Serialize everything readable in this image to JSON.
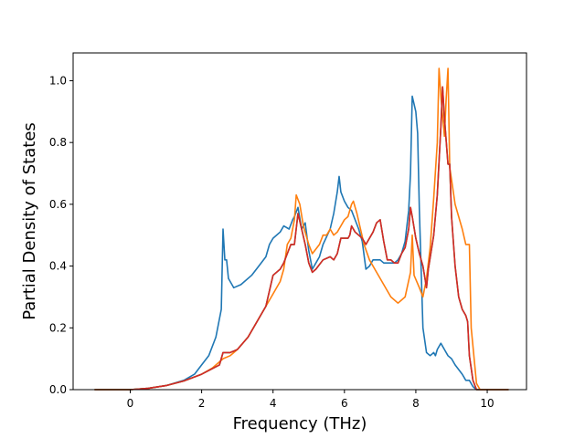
{
  "chart_data": {
    "type": "line",
    "title": "",
    "xlabel": "Frequency (THz)",
    "ylabel": "Partial Density of States",
    "xlim": [
      -1.6,
      11.1
    ],
    "ylim": [
      0.0,
      1.09
    ],
    "xticks": [
      0,
      2,
      4,
      6,
      8,
      10
    ],
    "yticks": [
      0.0,
      0.2,
      0.4,
      0.6,
      0.8,
      1.0
    ],
    "grid": false,
    "legend": "none",
    "series": [
      {
        "color": "#1f77b4",
        "points": [
          [
            -1.0,
            0.0
          ],
          [
            0.0,
            0.0
          ],
          [
            0.5,
            0.004
          ],
          [
            1.0,
            0.013
          ],
          [
            1.5,
            0.03
          ],
          [
            1.8,
            0.05
          ],
          [
            2.0,
            0.08
          ],
          [
            2.2,
            0.11
          ],
          [
            2.4,
            0.17
          ],
          [
            2.55,
            0.26
          ],
          [
            2.6,
            0.52
          ],
          [
            2.65,
            0.42
          ],
          [
            2.7,
            0.42
          ],
          [
            2.75,
            0.36
          ],
          [
            2.9,
            0.33
          ],
          [
            3.1,
            0.34
          ],
          [
            3.4,
            0.37
          ],
          [
            3.6,
            0.4
          ],
          [
            3.8,
            0.43
          ],
          [
            3.9,
            0.47
          ],
          [
            4.0,
            0.49
          ],
          [
            4.2,
            0.51
          ],
          [
            4.3,
            0.53
          ],
          [
            4.45,
            0.52
          ],
          [
            4.55,
            0.55
          ],
          [
            4.6,
            0.56
          ],
          [
            4.7,
            0.59
          ],
          [
            4.8,
            0.52
          ],
          [
            4.9,
            0.54
          ],
          [
            5.0,
            0.45
          ],
          [
            5.1,
            0.39
          ],
          [
            5.2,
            0.41
          ],
          [
            5.3,
            0.43
          ],
          [
            5.4,
            0.47
          ],
          [
            5.6,
            0.52
          ],
          [
            5.7,
            0.57
          ],
          [
            5.8,
            0.64
          ],
          [
            5.85,
            0.69
          ],
          [
            5.9,
            0.64
          ],
          [
            6.0,
            0.61
          ],
          [
            6.1,
            0.59
          ],
          [
            6.2,
            0.58
          ],
          [
            6.4,
            0.52
          ],
          [
            6.5,
            0.48
          ],
          [
            6.6,
            0.39
          ],
          [
            6.7,
            0.4
          ],
          [
            6.8,
            0.42
          ],
          [
            7.0,
            0.42
          ],
          [
            7.1,
            0.41
          ],
          [
            7.2,
            0.41
          ],
          [
            7.4,
            0.41
          ],
          [
            7.5,
            0.42
          ],
          [
            7.6,
            0.44
          ],
          [
            7.7,
            0.48
          ],
          [
            7.8,
            0.58
          ],
          [
            7.85,
            0.7
          ],
          [
            7.9,
            0.95
          ],
          [
            8.0,
            0.9
          ],
          [
            8.05,
            0.83
          ],
          [
            8.1,
            0.58
          ],
          [
            8.2,
            0.2
          ],
          [
            8.3,
            0.12
          ],
          [
            8.4,
            0.11
          ],
          [
            8.5,
            0.12
          ],
          [
            8.55,
            0.11
          ],
          [
            8.6,
            0.13
          ],
          [
            8.7,
            0.15
          ],
          [
            8.8,
            0.13
          ],
          [
            8.9,
            0.11
          ],
          [
            9.0,
            0.1
          ],
          [
            9.1,
            0.08
          ],
          [
            9.3,
            0.05
          ],
          [
            9.4,
            0.03
          ],
          [
            9.5,
            0.03
          ],
          [
            9.6,
            0.01
          ],
          [
            9.7,
            0.0
          ],
          [
            10.0,
            0.0
          ],
          [
            10.6,
            0.0
          ]
        ]
      },
      {
        "color": "#ff7f0e",
        "points": [
          [
            -1.0,
            0.0
          ],
          [
            0.0,
            0.0
          ],
          [
            0.5,
            0.004
          ],
          [
            1.0,
            0.013
          ],
          [
            1.5,
            0.028
          ],
          [
            2.0,
            0.05
          ],
          [
            2.3,
            0.07
          ],
          [
            2.6,
            0.1
          ],
          [
            2.8,
            0.11
          ],
          [
            3.0,
            0.13
          ],
          [
            3.3,
            0.17
          ],
          [
            3.6,
            0.23
          ],
          [
            3.8,
            0.27
          ],
          [
            4.0,
            0.31
          ],
          [
            4.2,
            0.35
          ],
          [
            4.3,
            0.39
          ],
          [
            4.4,
            0.47
          ],
          [
            4.5,
            0.49
          ],
          [
            4.6,
            0.55
          ],
          [
            4.65,
            0.63
          ],
          [
            4.75,
            0.6
          ],
          [
            4.85,
            0.53
          ],
          [
            5.0,
            0.47
          ],
          [
            5.1,
            0.44
          ],
          [
            5.3,
            0.47
          ],
          [
            5.4,
            0.5
          ],
          [
            5.5,
            0.5
          ],
          [
            5.6,
            0.52
          ],
          [
            5.7,
            0.5
          ],
          [
            5.8,
            0.51
          ],
          [
            5.9,
            0.53
          ],
          [
            6.0,
            0.55
          ],
          [
            6.1,
            0.56
          ],
          [
            6.2,
            0.6
          ],
          [
            6.25,
            0.61
          ],
          [
            6.35,
            0.57
          ],
          [
            6.45,
            0.52
          ],
          [
            6.55,
            0.47
          ],
          [
            6.7,
            0.42
          ],
          [
            6.9,
            0.38
          ],
          [
            7.1,
            0.34
          ],
          [
            7.3,
            0.3
          ],
          [
            7.5,
            0.28
          ],
          [
            7.7,
            0.3
          ],
          [
            7.85,
            0.38
          ],
          [
            7.9,
            0.5
          ],
          [
            7.95,
            0.37
          ],
          [
            8.1,
            0.33
          ],
          [
            8.2,
            0.3
          ],
          [
            8.3,
            0.36
          ],
          [
            8.4,
            0.46
          ],
          [
            8.5,
            0.62
          ],
          [
            8.6,
            0.8
          ],
          [
            8.65,
            1.04
          ],
          [
            8.7,
            0.95
          ],
          [
            8.8,
            0.82
          ],
          [
            8.85,
            0.94
          ],
          [
            8.9,
            1.04
          ],
          [
            8.95,
            0.72
          ],
          [
            9.1,
            0.6
          ],
          [
            9.3,
            0.52
          ],
          [
            9.4,
            0.47
          ],
          [
            9.5,
            0.47
          ],
          [
            9.55,
            0.2
          ],
          [
            9.7,
            0.02
          ],
          [
            9.8,
            0.0
          ],
          [
            10.0,
            0.0
          ],
          [
            10.6,
            0.0
          ]
        ]
      },
      {
        "color": "#2ca02c",
        "points": [
          [
            -1.0,
            0.0
          ],
          [
            0.0,
            0.0
          ],
          [
            0.5,
            0.004
          ],
          [
            1.0,
            0.013
          ],
          [
            1.5,
            0.028
          ],
          [
            2.0,
            0.05
          ],
          [
            2.5,
            0.08
          ],
          [
            2.6,
            0.12
          ],
          [
            2.8,
            0.12
          ],
          [
            3.0,
            0.13
          ],
          [
            3.3,
            0.17
          ],
          [
            3.6,
            0.23
          ],
          [
            3.8,
            0.27
          ],
          [
            4.0,
            0.37
          ],
          [
            4.2,
            0.39
          ],
          [
            4.3,
            0.41
          ],
          [
            4.4,
            0.44
          ],
          [
            4.5,
            0.47
          ],
          [
            4.6,
            0.47
          ],
          [
            4.7,
            0.57
          ],
          [
            4.8,
            0.52
          ],
          [
            4.9,
            0.47
          ],
          [
            5.0,
            0.41
          ],
          [
            5.1,
            0.38
          ],
          [
            5.2,
            0.39
          ],
          [
            5.4,
            0.42
          ],
          [
            5.6,
            0.43
          ],
          [
            5.7,
            0.42
          ],
          [
            5.8,
            0.44
          ],
          [
            5.9,
            0.49
          ],
          [
            6.0,
            0.49
          ],
          [
            6.1,
            0.49
          ],
          [
            6.15,
            0.5
          ],
          [
            6.2,
            0.53
          ],
          [
            6.3,
            0.51
          ],
          [
            6.4,
            0.5
          ],
          [
            6.5,
            0.49
          ],
          [
            6.6,
            0.47
          ],
          [
            6.8,
            0.51
          ],
          [
            6.9,
            0.54
          ],
          [
            7.0,
            0.55
          ],
          [
            7.1,
            0.48
          ],
          [
            7.2,
            0.42
          ],
          [
            7.3,
            0.42
          ],
          [
            7.4,
            0.41
          ],
          [
            7.5,
            0.41
          ],
          [
            7.6,
            0.44
          ],
          [
            7.7,
            0.46
          ],
          [
            7.8,
            0.52
          ],
          [
            7.85,
            0.59
          ],
          [
            7.9,
            0.56
          ],
          [
            8.0,
            0.49
          ],
          [
            8.1,
            0.44
          ],
          [
            8.2,
            0.4
          ],
          [
            8.3,
            0.33
          ],
          [
            8.35,
            0.39
          ],
          [
            8.5,
            0.5
          ],
          [
            8.6,
            0.63
          ],
          [
            8.7,
            0.85
          ],
          [
            8.75,
            0.98
          ],
          [
            8.8,
            0.88
          ],
          [
            8.9,
            0.73
          ],
          [
            8.95,
            0.73
          ],
          [
            9.0,
            0.56
          ],
          [
            9.1,
            0.4
          ],
          [
            9.2,
            0.3
          ],
          [
            9.3,
            0.26
          ],
          [
            9.4,
            0.24
          ],
          [
            9.45,
            0.22
          ],
          [
            9.5,
            0.11
          ],
          [
            9.6,
            0.03
          ],
          [
            9.7,
            0.0
          ],
          [
            10.0,
            0.0
          ],
          [
            10.6,
            0.0
          ]
        ]
      },
      {
        "color": "#d62728",
        "points": [
          [
            -1.0,
            0.0
          ],
          [
            0.0,
            0.0
          ],
          [
            0.5,
            0.004
          ],
          [
            1.0,
            0.013
          ],
          [
            1.5,
            0.028
          ],
          [
            2.0,
            0.05
          ],
          [
            2.5,
            0.08
          ],
          [
            2.6,
            0.12
          ],
          [
            2.8,
            0.12
          ],
          [
            3.0,
            0.13
          ],
          [
            3.3,
            0.17
          ],
          [
            3.6,
            0.23
          ],
          [
            3.8,
            0.27
          ],
          [
            4.0,
            0.37
          ],
          [
            4.2,
            0.39
          ],
          [
            4.3,
            0.41
          ],
          [
            4.4,
            0.44
          ],
          [
            4.5,
            0.47
          ],
          [
            4.6,
            0.47
          ],
          [
            4.7,
            0.57
          ],
          [
            4.8,
            0.52
          ],
          [
            4.9,
            0.47
          ],
          [
            5.0,
            0.41
          ],
          [
            5.1,
            0.38
          ],
          [
            5.2,
            0.39
          ],
          [
            5.4,
            0.42
          ],
          [
            5.6,
            0.43
          ],
          [
            5.7,
            0.42
          ],
          [
            5.8,
            0.44
          ],
          [
            5.9,
            0.49
          ],
          [
            6.0,
            0.49
          ],
          [
            6.1,
            0.49
          ],
          [
            6.15,
            0.5
          ],
          [
            6.2,
            0.53
          ],
          [
            6.3,
            0.51
          ],
          [
            6.4,
            0.5
          ],
          [
            6.5,
            0.49
          ],
          [
            6.6,
            0.47
          ],
          [
            6.8,
            0.51
          ],
          [
            6.9,
            0.54
          ],
          [
            7.0,
            0.55
          ],
          [
            7.1,
            0.48
          ],
          [
            7.2,
            0.42
          ],
          [
            7.3,
            0.42
          ],
          [
            7.4,
            0.41
          ],
          [
            7.5,
            0.41
          ],
          [
            7.6,
            0.44
          ],
          [
            7.7,
            0.46
          ],
          [
            7.8,
            0.52
          ],
          [
            7.85,
            0.59
          ],
          [
            7.9,
            0.56
          ],
          [
            8.0,
            0.49
          ],
          [
            8.1,
            0.44
          ],
          [
            8.2,
            0.4
          ],
          [
            8.3,
            0.33
          ],
          [
            8.35,
            0.39
          ],
          [
            8.5,
            0.5
          ],
          [
            8.6,
            0.63
          ],
          [
            8.7,
            0.85
          ],
          [
            8.75,
            0.98
          ],
          [
            8.8,
            0.88
          ],
          [
            8.9,
            0.73
          ],
          [
            8.95,
            0.73
          ],
          [
            9.0,
            0.56
          ],
          [
            9.1,
            0.4
          ],
          [
            9.2,
            0.3
          ],
          [
            9.3,
            0.26
          ],
          [
            9.4,
            0.24
          ],
          [
            9.45,
            0.22
          ],
          [
            9.5,
            0.11
          ],
          [
            9.6,
            0.03
          ],
          [
            9.7,
            0.0
          ],
          [
            10.0,
            0.0
          ],
          [
            10.6,
            0.0
          ]
        ]
      }
    ]
  }
}
